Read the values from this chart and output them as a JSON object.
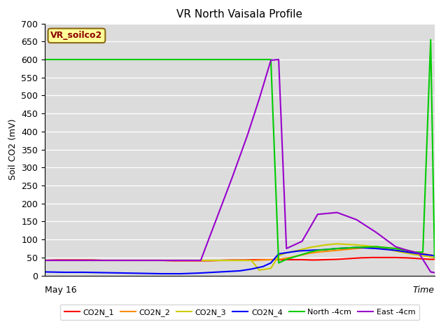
{
  "title": "VR North Vaisala Profile",
  "ylabel": "Soil CO2 (mV)",
  "xlabel": "Time",
  "x_start_label": "May 16",
  "ylim": [
    0,
    700
  ],
  "yticks": [
    0,
    50,
    100,
    150,
    200,
    250,
    300,
    350,
    400,
    450,
    500,
    550,
    600,
    650,
    700
  ],
  "annotation": "VR_soilco2",
  "annotation_color": "#8B0000",
  "annotation_bg": "#FFFF99",
  "annotation_border": "#8B6914",
  "background_color": "#DCDCDC",
  "series": {
    "CO2N_1": {
      "color": "#FF0000",
      "x": [
        0,
        3,
        6,
        9,
        12,
        15,
        18,
        21,
        24,
        27,
        30,
        33,
        36,
        39,
        42,
        45,
        48,
        51,
        54,
        57,
        60,
        63,
        66,
        69,
        72,
        75,
        78,
        81,
        84,
        87,
        90,
        93,
        96,
        99,
        100
      ],
      "y": [
        42,
        43,
        43,
        43,
        43,
        42,
        42,
        42,
        42,
        42,
        42,
        41,
        41,
        41,
        41,
        42,
        43,
        43,
        44,
        44,
        44,
        44,
        44,
        43,
        44,
        45,
        47,
        49,
        50,
        50,
        50,
        49,
        47,
        45,
        45
      ]
    },
    "CO2N_2": {
      "color": "#FF8C00",
      "x": [
        0,
        10,
        20,
        30,
        40,
        50,
        53,
        55,
        58,
        60,
        63,
        65,
        68,
        70,
        75,
        80,
        85,
        90,
        95,
        100
      ],
      "y": [
        42,
        42,
        42,
        42,
        42,
        42,
        42,
        43,
        44,
        45,
        50,
        55,
        62,
        65,
        70,
        75,
        80,
        75,
        65,
        55
      ]
    },
    "CO2N_3": {
      "color": "#CCCC00",
      "x": [
        0,
        10,
        20,
        30,
        40,
        50,
        53,
        55,
        58,
        60,
        62,
        65,
        68,
        72,
        75,
        80,
        85,
        90,
        95,
        100
      ],
      "y": [
        42,
        42,
        42,
        42,
        42,
        42,
        42,
        15,
        20,
        55,
        63,
        70,
        78,
        85,
        88,
        85,
        80,
        68,
        58,
        50
      ]
    },
    "CO2N_4": {
      "color": "#0000FF",
      "x": [
        0,
        5,
        10,
        15,
        20,
        25,
        30,
        35,
        40,
        45,
        50,
        53,
        56,
        58,
        60,
        63,
        65,
        68,
        72,
        75,
        80,
        85,
        90,
        95,
        100
      ],
      "y": [
        10,
        9,
        9,
        8,
        7,
        6,
        5,
        5,
        7,
        10,
        13,
        18,
        25,
        35,
        60,
        65,
        68,
        70,
        72,
        75,
        78,
        75,
        70,
        62,
        55
      ]
    },
    "North_4cm": {
      "color": "#00CC00",
      "x": [
        0,
        5,
        10,
        15,
        20,
        25,
        30,
        35,
        40,
        45,
        50,
        55,
        58,
        60,
        62,
        65,
        68,
        70,
        75,
        80,
        85,
        90,
        93,
        95,
        97,
        99,
        100
      ],
      "y": [
        600,
        600,
        600,
        600,
        600,
        600,
        600,
        600,
        600,
        600,
        600,
        600,
        600,
        35,
        45,
        55,
        65,
        70,
        75,
        78,
        80,
        75,
        70,
        65,
        65,
        655,
        50
      ]
    },
    "East_4cm": {
      "color": "#9900CC",
      "x": [
        0,
        10,
        20,
        30,
        40,
        48,
        52,
        55,
        58,
        60,
        62,
        64,
        66,
        70,
        75,
        80,
        85,
        90,
        93,
        96,
        99,
        100
      ],
      "y": [
        42,
        42,
        42,
        42,
        42,
        270,
        390,
        490,
        598,
        600,
        75,
        85,
        95,
        170,
        175,
        155,
        120,
        80,
        70,
        62,
        10,
        8
      ]
    }
  }
}
